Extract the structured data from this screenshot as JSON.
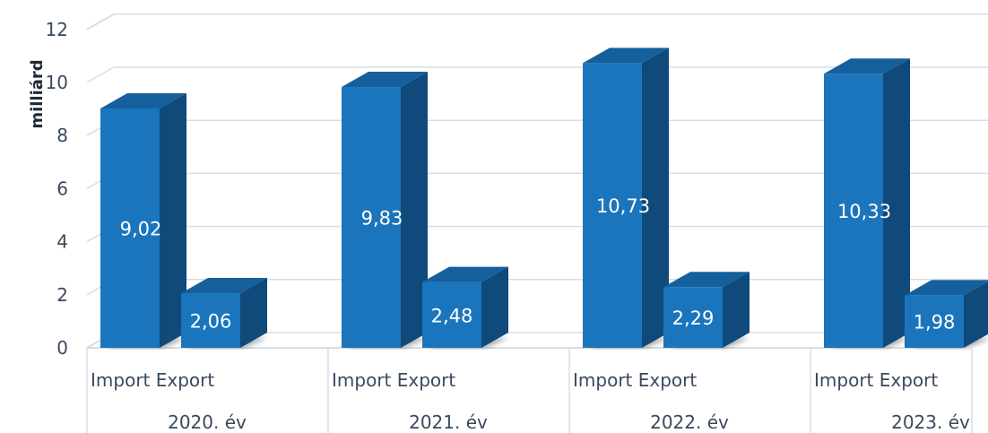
{
  "chart_data": {
    "type": "bar",
    "style": "3d-clustered-column",
    "ylabel": "milliárd",
    "ylim": [
      0,
      12
    ],
    "yticks": [
      "0",
      "2",
      "4",
      "6",
      "8",
      "10",
      "12"
    ],
    "ytick_values": [
      0,
      2,
      4,
      6,
      8,
      10,
      12
    ],
    "grid": true,
    "groups": [
      {
        "year_label": "2020. év",
        "categories_label": "Import Export",
        "bars": [
          {
            "name": "Import",
            "value": 9.02,
            "label": "9,02"
          },
          {
            "name": "Export",
            "value": 2.06,
            "label": "2,06"
          }
        ]
      },
      {
        "year_label": "2021. év",
        "categories_label": "Import Export",
        "bars": [
          {
            "name": "Import",
            "value": 9.83,
            "label": "9,83"
          },
          {
            "name": "Export",
            "value": 2.48,
            "label": "2,48"
          }
        ]
      },
      {
        "year_label": "2022. év",
        "categories_label": "Import Export",
        "bars": [
          {
            "name": "Import",
            "value": 10.73,
            "label": "10,73"
          },
          {
            "name": "Export",
            "value": 2.29,
            "label": "2,29"
          }
        ]
      },
      {
        "year_label": "2023. év",
        "categories_label": "Import Export",
        "bars": [
          {
            "name": "Import",
            "value": 10.33,
            "label": "10,33"
          },
          {
            "name": "Export",
            "value": 1.98,
            "label": "1,98"
          }
        ]
      }
    ],
    "colors": {
      "front": "#1b75bc",
      "top": "#15609c",
      "side": "#0f4a7a",
      "grid": "#d9dde2",
      "text": "#3a4a5e"
    }
  }
}
